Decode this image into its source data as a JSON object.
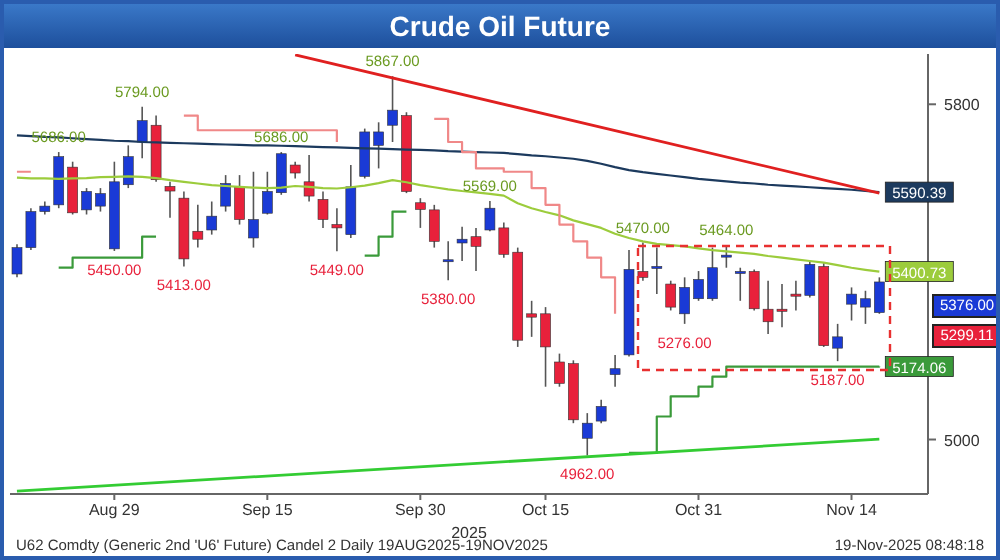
{
  "chart_data": {
    "type": "candlestick",
    "title": "Crude Oil Future",
    "xlabel": "2025",
    "categories": [
      null,
      null,
      null,
      null,
      null,
      null,
      null,
      "Aug 29",
      null,
      null,
      null,
      null,
      null,
      null,
      null,
      null,
      null,
      null,
      "Sep 15",
      null,
      null,
      null,
      null,
      null,
      null,
      null,
      null,
      null,
      null,
      "Sep 30",
      null,
      null,
      null,
      null,
      null,
      null,
      null,
      null,
      "Oct 15",
      null,
      null,
      null,
      null,
      null,
      null,
      null,
      null,
      null,
      null,
      "Oct 31",
      null,
      null,
      null,
      null,
      null,
      null,
      null,
      null,
      null,
      null,
      "Nov 14",
      null,
      null
    ],
    "ohlc": [
      [
        5395,
        5466,
        5387,
        5458
      ],
      [
        5458,
        5552,
        5452,
        5544
      ],
      [
        5544,
        5568,
        5537,
        5557
      ],
      [
        5560,
        5686,
        5552,
        5675
      ],
      [
        5650,
        5663,
        5537,
        5541
      ],
      [
        5548,
        5600,
        5537,
        5592
      ],
      [
        5557,
        5600,
        5544,
        5587
      ],
      [
        5455,
        5663,
        5450,
        5615
      ],
      [
        5608,
        5702,
        5600,
        5675
      ],
      [
        5710,
        5794,
        5671,
        5761
      ],
      [
        5750,
        5773,
        5615,
        5620
      ],
      [
        5604,
        5615,
        5529,
        5593
      ],
      [
        5576,
        5592,
        5413,
        5431
      ],
      [
        5497,
        5560,
        5458,
        5478
      ],
      [
        5500,
        5568,
        5489,
        5533
      ],
      [
        5557,
        5631,
        5544,
        5611
      ],
      [
        5603,
        5631,
        5513,
        5525
      ],
      [
        5481,
        5639,
        5458,
        5525
      ],
      [
        5540,
        5639,
        5537,
        5592
      ],
      [
        5589,
        5686,
        5584,
        5682
      ],
      [
        5655,
        5663,
        5623,
        5636
      ],
      [
        5615,
        5679,
        5568,
        5581
      ],
      [
        5573,
        5592,
        5505,
        5525
      ],
      [
        5513,
        5552,
        5449,
        5505
      ],
      [
        5489,
        5655,
        5481,
        5603
      ],
      [
        5628,
        5742,
        5623,
        5734
      ],
      [
        5702,
        5757,
        5647,
        5734
      ],
      [
        5750,
        5867,
        5710,
        5786
      ],
      [
        5773,
        5781,
        5588,
        5592
      ],
      [
        5565,
        5576,
        5505,
        5549
      ],
      [
        5548,
        5560,
        5458,
        5473
      ],
      [
        5426,
        5473,
        5380,
        5429
      ],
      [
        5469,
        5508,
        5426,
        5478
      ],
      [
        5484,
        5505,
        5402,
        5461
      ],
      [
        5500,
        5569,
        5497,
        5552
      ],
      [
        5505,
        5518,
        5434,
        5442
      ],
      [
        5447,
        5458,
        5221,
        5237
      ],
      [
        5300,
        5331,
        5245,
        5292
      ],
      [
        5300,
        5316,
        5126,
        5221
      ],
      [
        5185,
        5205,
        5126,
        5134
      ],
      [
        5181,
        5189,
        5039,
        5047
      ],
      [
        5003,
        5063,
        4962,
        5039
      ],
      [
        5044,
        5095,
        5039,
        5079
      ],
      [
        5155,
        5202,
        5126,
        5169
      ],
      [
        5202,
        5452,
        5198,
        5406
      ],
      [
        5401,
        5470,
        5379,
        5387
      ],
      [
        5410,
        5458,
        5347,
        5413
      ],
      [
        5371,
        5379,
        5308,
        5316
      ],
      [
        5300,
        5387,
        5276,
        5363
      ],
      [
        5336,
        5402,
        5331,
        5382
      ],
      [
        5336,
        5458,
        5331,
        5410
      ],
      [
        5436,
        5464,
        5410,
        5440
      ],
      [
        5398,
        5410,
        5331,
        5401
      ],
      [
        5401,
        5406,
        5308,
        5312
      ],
      [
        5311,
        5379,
        5252,
        5281
      ],
      [
        5311,
        5371,
        5268,
        5306
      ],
      [
        5347,
        5379,
        5308,
        5342
      ],
      [
        5344,
        5426,
        5339,
        5418
      ],
      [
        5413,
        5421,
        5221,
        5224
      ],
      [
        5218,
        5276,
        5187,
        5245
      ],
      [
        5323,
        5363,
        5284,
        5347
      ],
      [
        5316,
        5355,
        5276,
        5336
      ],
      [
        5303,
        5387,
        5300,
        5376
      ]
    ],
    "colors": [
      "#1a3ad6",
      "#1a3ad6",
      "#1a3ad6",
      "#1a3ad6",
      "#e8213b",
      "#1a3ad6",
      "#1a3ad6",
      "#1a3ad6",
      "#1a3ad6",
      "#1a3ad6",
      "#e8213b",
      "#e8213b",
      "#e8213b",
      "#e8213b",
      "#1a3ad6",
      "#1a3ad6",
      "#e8213b",
      "#1a3ad6",
      "#1a3ad6",
      "#1a3ad6",
      "#e8213b",
      "#e8213b",
      "#e8213b",
      "#e8213b",
      "#1a3ad6",
      "#1a3ad6",
      "#1a3ad6",
      "#1a3ad6",
      "#e8213b",
      "#e8213b",
      "#e8213b",
      "#1a3ad6",
      "#1a3ad6",
      "#e8213b",
      "#1a3ad6",
      "#e8213b",
      "#e8213b",
      "#e8213b",
      "#e8213b",
      "#e8213b",
      "#e8213b",
      "#1a3ad6",
      "#1a3ad6",
      "#1a3ad6",
      "#1a3ad6",
      "#e8213b",
      "#1a3ad6",
      "#e8213b",
      "#1a3ad6",
      "#1a3ad6",
      "#1a3ad6",
      "#1a3ad6",
      "#1a3ad6",
      "#e8213b",
      "#e8213b",
      "#e8213b",
      "#e8213b",
      "#1a3ad6",
      "#e8213b",
      "#1a3ad6",
      "#1a3ad6",
      "#1a3ad6",
      "#1a3ad6"
    ],
    "series": [
      {
        "type": "line",
        "color": "#1c3a5e",
        "values": [
          5726,
          5724,
          5722,
          5721,
          5719,
          5717,
          5715,
          5713,
          5712,
          5710,
          5709,
          5708,
          5707,
          5706,
          5705,
          5704,
          5703,
          5702,
          5702,
          5701,
          5700,
          5699,
          5698,
          5697,
          5696,
          5695,
          5694,
          5693,
          5692,
          5691,
          5690,
          5688,
          5687,
          5686,
          5685,
          5684,
          5681,
          5678,
          5676,
          5673,
          5670,
          5665,
          5658,
          5650,
          5643,
          5638,
          5634,
          5630,
          5626,
          5622,
          5619,
          5616,
          5613,
          5611,
          5608,
          5606,
          5604,
          5602,
          5600,
          5598,
          5596,
          5593,
          5590.39
        ],
        "value_labels": [
          null,
          null,
          null,
          null,
          null,
          null,
          null,
          null,
          null,
          null,
          null,
          null,
          null,
          null,
          null,
          null,
          null,
          null,
          null,
          null,
          null,
          null,
          null,
          null,
          null,
          null,
          null,
          null,
          null,
          null,
          null,
          null,
          null,
          null,
          null,
          null,
          null,
          null,
          null,
          null,
          null,
          null,
          null,
          null,
          null,
          null,
          null,
          null,
          null,
          null,
          null,
          null,
          null,
          null,
          null,
          null,
          null,
          null,
          null,
          null,
          null,
          null,
          "5590.39"
        ]
      },
      {
        "type": "line",
        "color": "#9ccc3c",
        "values": [
          5625,
          5623,
          5623,
          5622,
          5623,
          5624,
          5626,
          5627,
          5628,
          5627,
          5624,
          5619,
          5615,
          5611,
          5607,
          5605,
          5603,
          5601,
          5600,
          5601,
          5605,
          5603,
          5600,
          5599,
          5602,
          5606,
          5612,
          5619,
          5614,
          5607,
          5602,
          5597,
          5593,
          5590,
          5586,
          5582,
          5564,
          5552,
          5543,
          5535,
          5523,
          5514,
          5505,
          5491,
          5481,
          5473,
          5467,
          5464,
          5461,
          5456,
          5452,
          5449,
          5446,
          5443,
          5438,
          5434,
          5430,
          5426,
          5422,
          5416,
          5410,
          5405,
          5400.73
        ],
        "value_labels": [
          null,
          null,
          null,
          null,
          null,
          null,
          null,
          null,
          null,
          null,
          null,
          null,
          null,
          null,
          null,
          null,
          null,
          null,
          null,
          null,
          null,
          null,
          null,
          null,
          null,
          null,
          null,
          null,
          null,
          null,
          null,
          null,
          null,
          null,
          null,
          null,
          null,
          null,
          null,
          null,
          null,
          null,
          null,
          null,
          null,
          null,
          null,
          null,
          null,
          null,
          null,
          null,
          null,
          null,
          null,
          null,
          null,
          null,
          null,
          null,
          null,
          null,
          "5400.73"
        ]
      },
      {
        "type": "step",
        "color": "#f08888",
        "values": [
          5639,
          5639,
          null,
          null,
          null,
          null,
          null,
          null,
          null,
          null,
          null,
          null,
          5773,
          5738,
          5738,
          5738,
          5738,
          5738,
          5738,
          5738,
          5738,
          5738,
          5738,
          5710,
          null,
          null,
          null,
          null,
          null,
          null,
          5765,
          5710,
          5686,
          5647,
          5647,
          5639,
          5639,
          5600,
          5560,
          5513,
          5473,
          5434,
          5387,
          5300,
          null,
          null,
          null,
          null,
          null,
          null,
          null,
          null,
          null,
          null,
          null,
          null,
          null,
          null,
          null,
          null,
          null,
          null,
          null
        ]
      },
      {
        "type": "step",
        "color": "#3a9a3a",
        "values": [
          null,
          null,
          null,
          5410,
          5434,
          5434,
          5434,
          5434,
          5434,
          5484,
          5484,
          null,
          null,
          null,
          null,
          null,
          null,
          null,
          null,
          null,
          null,
          null,
          null,
          null,
          null,
          5439,
          5484,
          5544,
          5544,
          null,
          null,
          null,
          null,
          null,
          null,
          null,
          null,
          null,
          null,
          null,
          null,
          null,
          null,
          null,
          4968,
          4968,
          5055,
          5103,
          5103,
          5126,
          5150,
          5174,
          5174,
          5174,
          5174,
          5174,
          5174,
          5174,
          5174,
          5174,
          5174,
          5174,
          5174.06
        ],
        "value_labels": [
          null,
          null,
          null,
          null,
          null,
          null,
          null,
          null,
          null,
          null,
          null,
          null,
          null,
          null,
          null,
          null,
          null,
          null,
          null,
          null,
          null,
          null,
          null,
          null,
          null,
          null,
          null,
          null,
          null,
          null,
          null,
          null,
          null,
          null,
          null,
          null,
          null,
          null,
          null,
          null,
          null,
          null,
          null,
          null,
          null,
          null,
          null,
          null,
          null,
          null,
          null,
          null,
          null,
          null,
          null,
          null,
          null,
          null,
          null,
          null,
          null,
          null,
          "5174.06"
        ]
      },
      {
        "type": "line",
        "color": "#e02020",
        "values": [
          null,
          null,
          null,
          null,
          null,
          null,
          null,
          null,
          null,
          null,
          null,
          null,
          null,
          null,
          null,
          null,
          null,
          null,
          null,
          null,
          5918,
          null,
          null,
          null,
          null,
          null,
          null,
          null,
          null,
          null,
          null,
          null,
          null,
          null,
          null,
          null,
          null,
          null,
          null,
          null,
          null,
          null,
          null,
          null,
          null,
          null,
          null,
          null,
          null,
          null,
          null,
          null,
          null,
          null,
          null,
          null,
          null,
          null,
          null,
          null,
          null,
          null,
          5588
        ]
      },
      {
        "type": "line",
        "color": "#33cc33",
        "values": [
          4877,
          null,
          null,
          null,
          null,
          null,
          null,
          null,
          null,
          null,
          null,
          null,
          null,
          null,
          null,
          null,
          null,
          null,
          null,
          null,
          null,
          null,
          null,
          null,
          null,
          null,
          null,
          null,
          null,
          null,
          null,
          null,
          null,
          null,
          null,
          null,
          null,
          null,
          null,
          null,
          null,
          null,
          null,
          null,
          null,
          null,
          null,
          null,
          null,
          null,
          null,
          null,
          null,
          null,
          null,
          null,
          null,
          null,
          null,
          null,
          null,
          null,
          5001
        ]
      }
    ],
    "ylim": [
      4870,
      5920
    ],
    "yticks": [
      5000,
      5800
    ],
    "annotations": [
      {
        "text": "5686.00",
        "y": 5686
      },
      {
        "text": "5794.00",
        "y": 5794
      },
      {
        "text": "5450.00",
        "y": 5450
      },
      {
        "text": "5413.00",
        "y": 5413
      },
      {
        "text": "5686.00",
        "y": 5686
      },
      {
        "text": "5867.00",
        "y": 5867
      },
      {
        "text": "5449.00",
        "y": 5449
      },
      {
        "text": "5380.00",
        "y": 5380
      },
      {
        "text": "5569.00",
        "y": 5569
      },
      {
        "text": "4962.00",
        "y": 4962
      },
      {
        "text": "5470.00",
        "y": 5470
      },
      {
        "text": "5464.00",
        "y": 5464
      },
      {
        "text": "5276.00",
        "y": 5276
      },
      {
        "text": "5187.00",
        "y": 5187
      },
      "5376.00",
      "5299.11",
      "U62 Comdty (Generic 2nd 'U6' Future) Candel 2 Daily 19AUG2025-19NOV2025",
      "19-Nov-2025 08:48:18"
    ]
  }
}
